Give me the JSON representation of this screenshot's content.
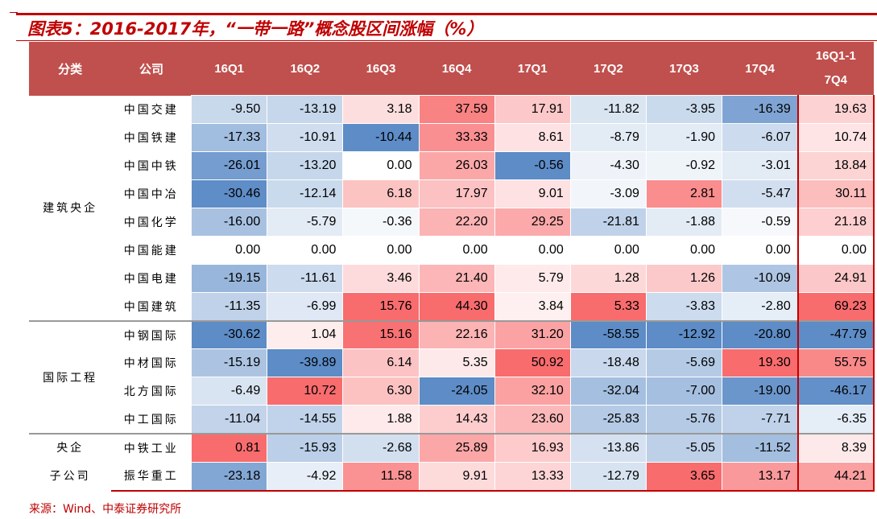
{
  "title": "图表5：2016-2017年，“一带一路”概念股区间涨幅（%）",
  "source": "来源：Wind、中泰证券研究所",
  "colors": {
    "header": "#C0504D",
    "positive": "#F8696B",
    "negative": "#5A8AC6",
    "accent": "#C00000"
  },
  "chart_data": {
    "type": "heatmap",
    "columns": [
      "分类",
      "公司",
      "16Q1",
      "16Q2",
      "16Q3",
      "16Q4",
      "17Q1",
      "17Q2",
      "17Q3",
      "17Q4",
      "16Q1-17Q4"
    ],
    "groups": [
      {
        "name": "建筑央企",
        "rows": [
          {
            "company": "中国交建",
            "values": [
              -9.5,
              -13.19,
              3.18,
              37.59,
              17.91,
              -11.82,
              -3.95,
              -16.39,
              19.63
            ]
          },
          {
            "company": "中国铁建",
            "values": [
              -17.33,
              -10.91,
              -10.44,
              33.33,
              8.61,
              -8.79,
              -1.9,
              -6.07,
              10.74
            ]
          },
          {
            "company": "中国中铁",
            "values": [
              -26.01,
              -13.2,
              0.0,
              26.03,
              -0.56,
              -4.3,
              -0.92,
              -3.01,
              18.84
            ]
          },
          {
            "company": "中国中冶",
            "values": [
              -30.46,
              -12.14,
              6.18,
              17.97,
              9.01,
              -3.09,
              2.81,
              -5.47,
              30.11
            ]
          },
          {
            "company": "中国化学",
            "values": [
              -16.0,
              -5.79,
              -0.36,
              22.2,
              29.25,
              -21.81,
              -1.88,
              -0.59,
              21.18
            ]
          },
          {
            "company": "中国能建",
            "values": [
              0.0,
              0.0,
              0.0,
              0.0,
              0.0,
              0.0,
              0.0,
              0.0,
              0.0
            ]
          },
          {
            "company": "中国电建",
            "values": [
              -19.15,
              -11.61,
              3.46,
              21.4,
              5.79,
              1.28,
              1.26,
              -10.09,
              24.91
            ]
          },
          {
            "company": "中国建筑",
            "values": [
              -11.35,
              -6.99,
              15.76,
              44.3,
              3.84,
              5.33,
              -3.83,
              -2.8,
              69.23
            ]
          }
        ]
      },
      {
        "name": "国际工程",
        "rows": [
          {
            "company": "中钢国际",
            "values": [
              -30.62,
              1.04,
              15.16,
              22.16,
              31.2,
              -58.55,
              -12.92,
              -20.8,
              -47.79
            ]
          },
          {
            "company": "中材国际",
            "values": [
              -15.19,
              -39.89,
              6.14,
              5.35,
              50.92,
              -18.48,
              -5.69,
              19.3,
              55.75
            ]
          },
          {
            "company": "北方国际",
            "values": [
              -6.49,
              10.72,
              6.3,
              -24.05,
              32.1,
              -32.04,
              -7.0,
              -19.0,
              -46.17
            ]
          },
          {
            "company": "中工国际",
            "values": [
              -11.04,
              -14.55,
              1.88,
              14.43,
              23.6,
              -25.83,
              -5.76,
              -7.71,
              -6.35
            ]
          }
        ]
      },
      {
        "name": "央企子公司",
        "name_lines": [
          "央企",
          "子公司"
        ],
        "rows": [
          {
            "company": "中铁工业",
            "values": [
              0.81,
              -15.93,
              -2.68,
              25.89,
              16.93,
              -13.86,
              -5.05,
              -11.52,
              8.39
            ]
          },
          {
            "company": "振华重工",
            "values": [
              -23.18,
              -4.92,
              11.58,
              9.91,
              13.33,
              -12.79,
              3.65,
              13.17,
              44.21
            ]
          }
        ]
      }
    ]
  }
}
